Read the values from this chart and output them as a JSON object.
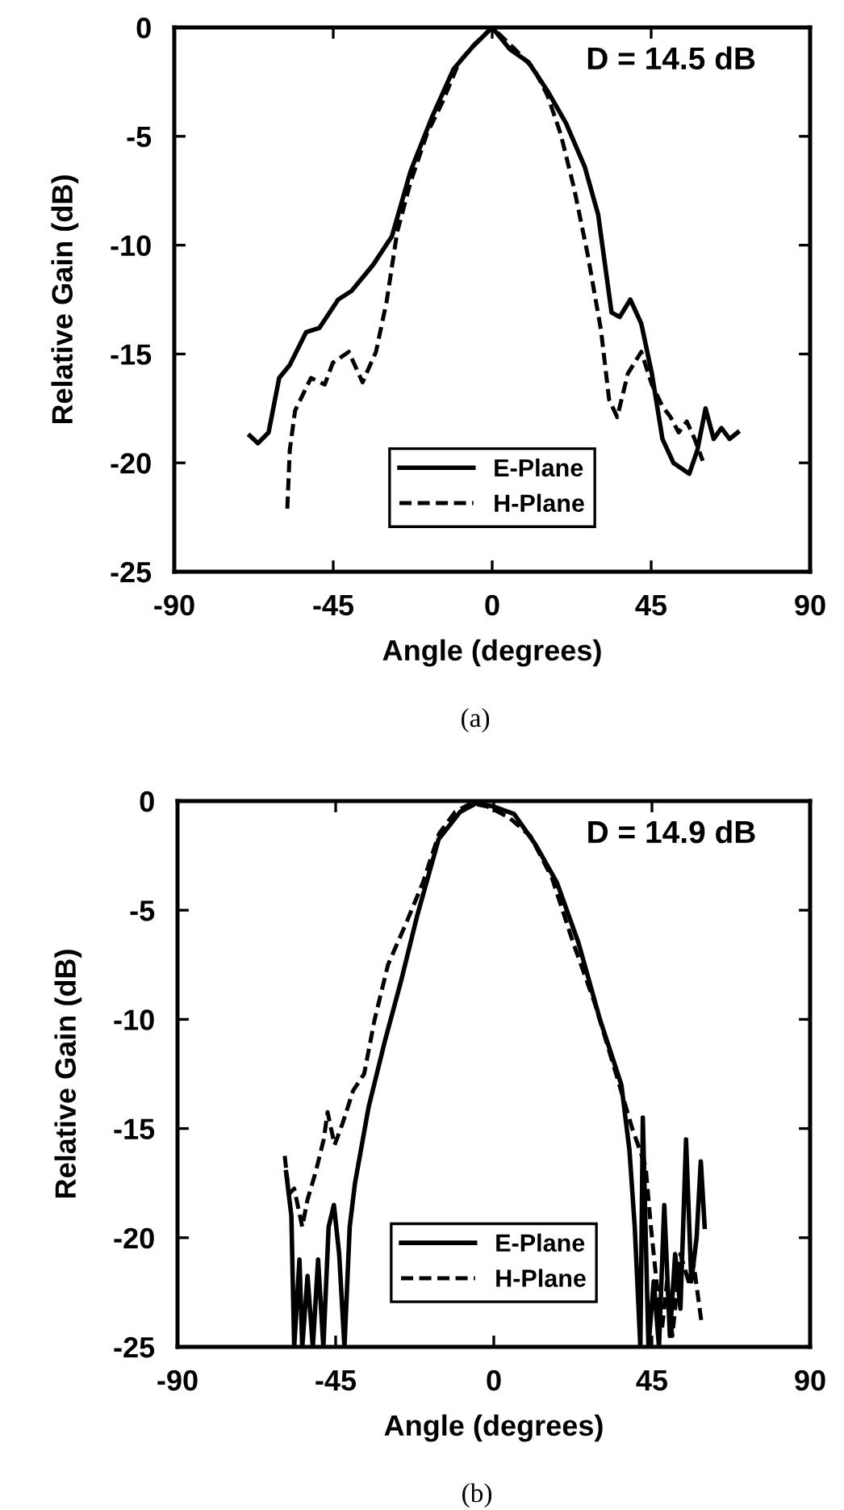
{
  "chart_data": [
    {
      "type": "line",
      "xlabel": "Angle (degrees)",
      "ylabel": "Relative Gain (dB)",
      "annotations": [
        "D = 14.5 dB",
        "(a)"
      ],
      "xlim": [
        -90,
        90
      ],
      "xticks": [
        -90,
        -45,
        0,
        45,
        90
      ],
      "ylim": [
        -25,
        0
      ],
      "yticks": [
        -25,
        -20,
        -15,
        -10,
        -5,
        0
      ],
      "grid": false,
      "legend": "bottom",
      "marker": "none",
      "series": [
        {
          "name": "E-Plane",
          "color": "#000000",
          "line_style": "solid",
          "x": [
            -68.6,
            -66.3,
            -63.3,
            -60.3,
            -57.3,
            -52.7,
            -48.9,
            -43.6,
            -39.8,
            -33.7,
            -28.4,
            -23.1,
            -17.0,
            -10.9,
            -5.6,
            0.0,
            5.0,
            10.3,
            15.6,
            20.9,
            26.2,
            30.0,
            33.8,
            36.1,
            39.1,
            42.2,
            45.2,
            48.2,
            51.3,
            55.8,
            58.1,
            60.4,
            62.7,
            64.9,
            67.2,
            69.5
          ],
          "values": [
            -18.75,
            -19.1,
            -18.6,
            -16.1,
            -15.5,
            -14.0,
            -13.8,
            -12.5,
            -12.1,
            -10.9,
            -9.6,
            -6.6,
            -4.1,
            -1.9,
            -0.9,
            0,
            -1.0,
            -1.6,
            -2.9,
            -4.4,
            -6.4,
            -8.6,
            -13.1,
            -13.3,
            -12.5,
            -13.6,
            -15.9,
            -18.9,
            -20.0,
            -20.5,
            -19.4,
            -17.5,
            -18.9,
            -18.4,
            -18.9,
            -18.6
          ]
        },
        {
          "name": "H-Plane",
          "color": "#000000",
          "line_style": "dashed",
          "x": [
            -58.0,
            -57.3,
            -55.8,
            -51.3,
            -47.4,
            -45.1,
            -40.6,
            -36.7,
            -32.9,
            -29.9,
            -26.9,
            -23.1,
            -18.5,
            -14.0,
            -9.4,
            -4.9,
            0,
            5.8,
            11.8,
            15.6,
            19.4,
            23.2,
            27.0,
            30.8,
            33.1,
            35.4,
            38.4,
            42.2,
            45.2,
            48.2,
            50.5,
            52.8,
            55.1,
            57.3,
            59.6
          ],
          "values": [
            -22.1,
            -19.4,
            -17.6,
            -16.1,
            -16.4,
            -15.4,
            -14.9,
            -16.3,
            -14.9,
            -12.6,
            -9.4,
            -7.1,
            -4.9,
            -3.4,
            -1.6,
            -0.75,
            0,
            -0.9,
            -1.9,
            -3.1,
            -4.9,
            -7.4,
            -10.4,
            -13.9,
            -17.1,
            -17.9,
            -15.9,
            -14.9,
            -16.4,
            -17.4,
            -17.9,
            -18.6,
            -18.1,
            -18.9,
            -19.9
          ]
        }
      ]
    },
    {
      "type": "line",
      "xlabel": "Angle (degrees)",
      "ylabel": "Relative Gain (dB)",
      "annotations": [
        "D = 14.9 dB",
        "(b)"
      ],
      "xlim": [
        -90,
        90
      ],
      "xticks": [
        -90,
        -45,
        0,
        45,
        90
      ],
      "ylim": [
        -25,
        0
      ],
      "yticks": [
        -25,
        -20,
        -15,
        -10,
        -5,
        0
      ],
      "grid": false,
      "legend": "bottom",
      "marker": "none",
      "series": [
        {
          "name": "E-Plane",
          "color": "#000000",
          "line_style": "solid",
          "x": [
            -59.1,
            -57.6,
            -56.8,
            -55.3,
            -54.5,
            -53.0,
            -51.5,
            -50.0,
            -48.5,
            -47.0,
            -45.5,
            -44.0,
            -42.5,
            -41.0,
            -39.5,
            -35.6,
            -31.0,
            -26.4,
            -21.8,
            -15.7,
            -9.6,
            -5.0,
            0,
            5.8,
            11.9,
            18.0,
            24.1,
            30.2,
            36.3,
            38.6,
            40.1,
            41.7,
            42.4,
            44.0,
            45.5,
            47.0,
            48.5,
            50.1,
            51.6,
            53.1,
            54.7,
            56.2,
            57.7,
            58.9,
            60.0
          ],
          "values": [
            -17,
            -19,
            -25,
            -21,
            -25,
            -21.75,
            -25,
            -21,
            -25,
            -19.5,
            -18.5,
            -20.75,
            -25,
            -19.5,
            -17.5,
            -14,
            -11,
            -8.25,
            -5.25,
            -1.75,
            -0.5,
            -0.1,
            -0.25,
            -0.6,
            -2.0,
            -3.75,
            -6.5,
            -10,
            -13,
            -16,
            -19.5,
            -25,
            -14.5,
            -25,
            -22,
            -25,
            -18.5,
            -24.5,
            -20.75,
            -23.25,
            -15.5,
            -22,
            -20,
            -16.5,
            -19.5
          ]
        },
        {
          "name": "H-Plane",
          "color": "#000000",
          "line_style": "dashed",
          "x": [
            -59.5,
            -58.3,
            -56.8,
            -54.5,
            -53.0,
            -50.7,
            -48.4,
            -47.3,
            -45.3,
            -43.0,
            -40.0,
            -36.9,
            -33.9,
            -30.1,
            -24.7,
            -20.2,
            -15.6,
            -11.0,
            -6.4,
            -1.8,
            4.3,
            10.4,
            16.5,
            22.6,
            28.7,
            34.8,
            39.4,
            43.2,
            44.7,
            46.3,
            47.8,
            49.3,
            50.8,
            53.1,
            55.4,
            56.9,
            59.2
          ],
          "values": [
            -16.25,
            -18,
            -17.75,
            -19.5,
            -18.25,
            -17,
            -15.5,
            -14.25,
            -15.75,
            -14.75,
            -13.25,
            -12.5,
            -10,
            -7.5,
            -5.5,
            -3.75,
            -1.5,
            -0.5,
            -0.1,
            -0.25,
            -0.75,
            -1.6,
            -3.5,
            -6.5,
            -9.25,
            -12.5,
            -15,
            -16.75,
            -19.5,
            -22,
            -24.25,
            -22,
            -24.5,
            -20.75,
            -22,
            -21.25,
            -24
          ]
        }
      ]
    }
  ]
}
